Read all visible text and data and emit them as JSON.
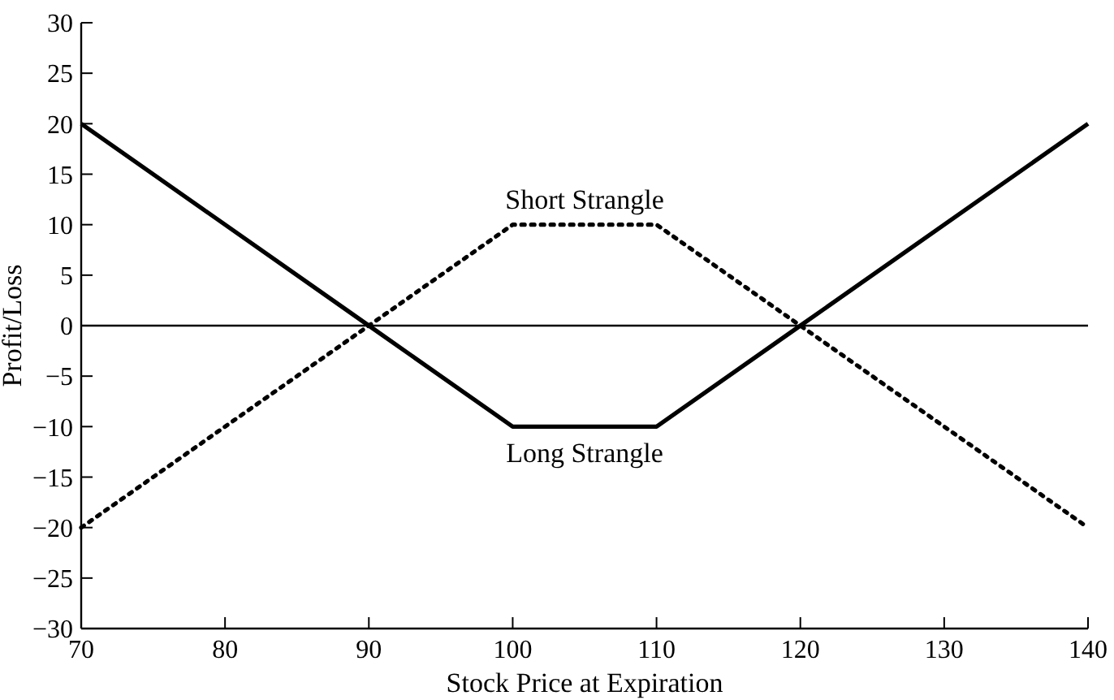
{
  "chart_data": {
    "type": "line",
    "xlabel": "Stock Price at Expiration",
    "ylabel": "Profit/Loss",
    "xlim": [
      70,
      140
    ],
    "xticks": [
      70,
      80,
      90,
      100,
      110,
      120,
      130,
      140
    ],
    "ylim": [
      -30,
      30
    ],
    "yticks": [
      {
        "value": 30,
        "label": "30"
      },
      {
        "value": 25,
        "label": "25"
      },
      {
        "value": 20,
        "label": "20"
      },
      {
        "value": 15,
        "label": "15"
      },
      {
        "value": 10,
        "label": "10"
      },
      {
        "value": 5,
        "label": "5"
      },
      {
        "value": 0,
        "label": "0"
      },
      {
        "value": -5,
        "label": "−5"
      },
      {
        "value": -10,
        "label": "−10"
      },
      {
        "value": -15,
        "label": "−15"
      },
      {
        "value": -20,
        "label": "−20"
      },
      {
        "value": -25,
        "label": "−25"
      },
      {
        "value": -30,
        "label": "−30"
      }
    ],
    "grid": false,
    "marker": "none",
    "ref_lines": [
      {
        "axis": "y",
        "value": 0,
        "color": "#000000"
      }
    ],
    "series": [
      {
        "name": "Long Strangle",
        "color": "#000000",
        "line_style": "solid",
        "x": [
          70,
          90,
          100,
          110,
          120,
          140
        ],
        "values": [
          20,
          0,
          -10,
          -10,
          0,
          20
        ]
      },
      {
        "name": "Short Strangle",
        "color": "#000000",
        "line_style": "dotted",
        "x": [
          70,
          100,
          110,
          140
        ],
        "values": [
          -20,
          10,
          10,
          -20
        ]
      }
    ]
  }
}
